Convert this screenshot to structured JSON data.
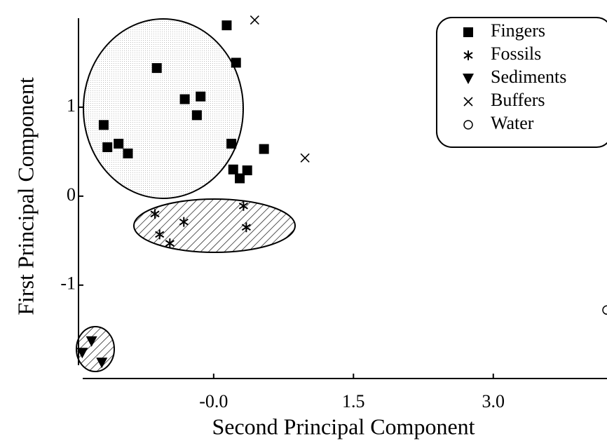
{
  "chart_data": {
    "type": "scatter",
    "x_label": "Second Principal Component",
    "y_label": "First Principal Component",
    "xlim": [
      -1.45,
      4.22
    ],
    "ylim": [
      -1.9,
      2.0
    ],
    "xticks": [
      {
        "value": 0,
        "label": "-0.0"
      },
      1.5,
      {
        "value": 3,
        "label": "3.0"
      }
    ],
    "yticks": [
      1,
      0,
      -1
    ],
    "legend": "upper right",
    "series": [
      {
        "name": "Fingers",
        "marker": "square",
        "color": "#000000",
        "x": [
          0.14,
          -0.61,
          0.24,
          -0.31,
          -0.14,
          -0.18,
          -1.18,
          -1.14,
          -1.02,
          -0.92,
          0.19,
          0.54,
          0.21,
          0.36,
          0.28
        ],
        "values": [
          1.92,
          1.44,
          1.5,
          1.09,
          1.12,
          0.91,
          0.8,
          0.55,
          0.59,
          0.48,
          0.59,
          0.53,
          0.3,
          0.29,
          0.2
        ]
      },
      {
        "name": "Fossils",
        "marker": "asterisk",
        "color": "#000000",
        "x": [
          -0.63,
          -0.32,
          -0.58,
          -0.47,
          0.32,
          0.35
        ],
        "values": [
          -0.2,
          -0.29,
          -0.43,
          -0.53,
          -0.11,
          -0.35
        ]
      },
      {
        "name": "Sediments",
        "marker": "triangle-down",
        "color": "#000000",
        "x": [
          -1.31,
          -1.41,
          -1.2
        ],
        "values": [
          -1.63,
          -1.76,
          -1.87
        ]
      },
      {
        "name": "Buffers",
        "marker": "cross",
        "color": "#000000",
        "x": [
          0.44,
          0.98
        ],
        "values": [
          1.98,
          0.43
        ]
      },
      {
        "name": "Water",
        "marker": "circle",
        "color": "#000000",
        "x": [
          4.22
        ],
        "values": [
          -1.28
        ]
      }
    ]
  }
}
